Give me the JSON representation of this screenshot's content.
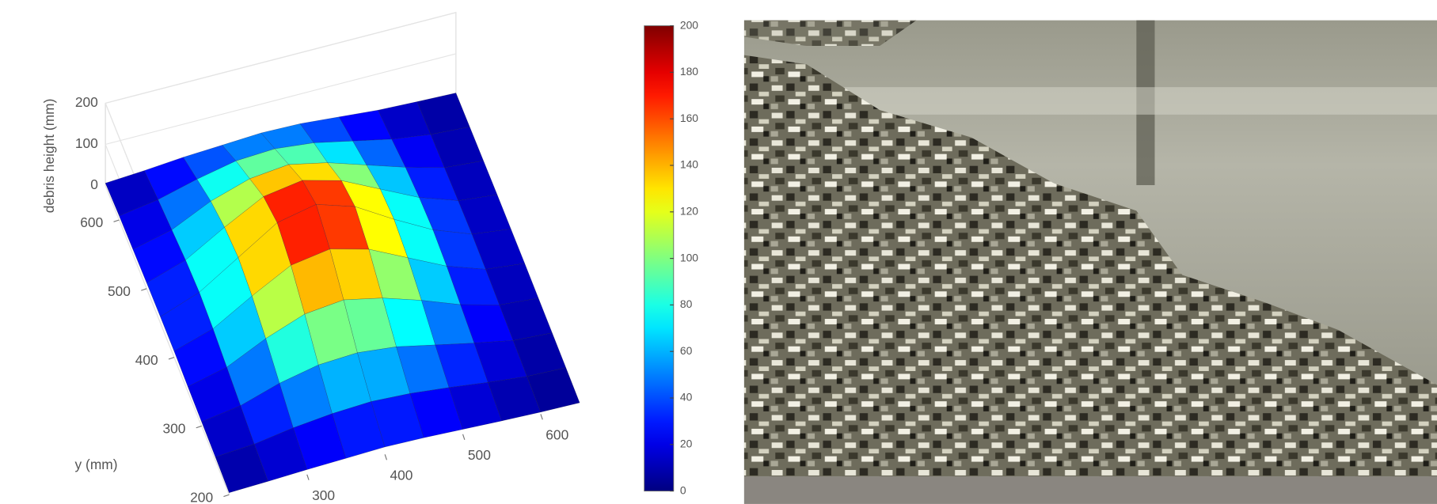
{
  "chart_data": {
    "type": "surface3d",
    "zlabel": "debris height (mm)",
    "ylabel": "y (mm)",
    "xlim": [
      200,
      650
    ],
    "ylim": [
      200,
      650
    ],
    "zlim": [
      0,
      200
    ],
    "xticks": [
      300,
      400,
      500,
      600
    ],
    "yticks": [
      200,
      300,
      400,
      500,
      600
    ],
    "zticks": [
      0,
      100,
      200
    ],
    "colormap": "jet",
    "clim": [
      0,
      200
    ],
    "cticks": [
      0,
      20,
      40,
      60,
      80,
      100,
      120,
      140,
      160,
      180,
      200
    ],
    "x": [
      200,
      250,
      300,
      350,
      400,
      450,
      500,
      550,
      600,
      650
    ],
    "y": [
      200,
      250,
      300,
      350,
      400,
      450,
      500,
      550,
      600,
      650
    ],
    "z": [
      [
        5,
        8,
        12,
        15,
        18,
        16,
        12,
        8,
        5,
        3
      ],
      [
        8,
        15,
        30,
        40,
        45,
        40,
        30,
        18,
        8,
        5
      ],
      [
        10,
        25,
        55,
        75,
        80,
        70,
        50,
        30,
        12,
        6
      ],
      [
        12,
        35,
        80,
        115,
        125,
        105,
        75,
        40,
        15,
        7
      ],
      [
        15,
        45,
        100,
        150,
        165,
        140,
        95,
        50,
        18,
        8
      ],
      [
        15,
        50,
        110,
        170,
        190,
        160,
        105,
        55,
        20,
        8
      ],
      [
        14,
        45,
        100,
        150,
        165,
        140,
        95,
        50,
        18,
        8
      ],
      [
        12,
        35,
        80,
        110,
        120,
        100,
        70,
        40,
        15,
        7
      ],
      [
        10,
        25,
        50,
        70,
        75,
        65,
        45,
        25,
        12,
        6
      ],
      [
        6,
        12,
        20,
        25,
        30,
        28,
        20,
        12,
        8,
        5
      ]
    ]
  }
}
